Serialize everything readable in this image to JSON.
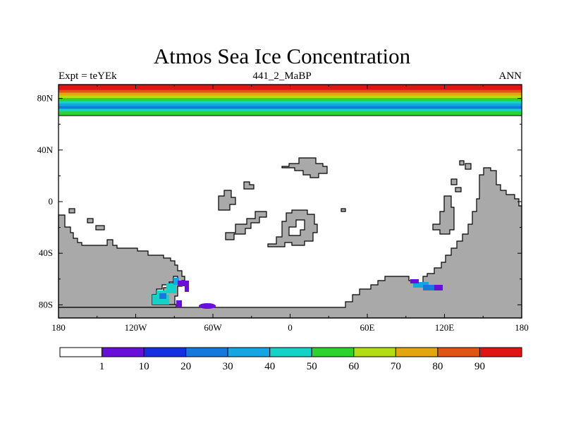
{
  "title": "Atmos Sea Ice Concentration",
  "subtitle_left": "Expt = teYEk",
  "subtitle_center": "441_2_MaBP",
  "subtitle_right": "ANN",
  "lat_ticks": [
    {
      "value": 80,
      "label": "80N"
    },
    {
      "value": 40,
      "label": "40N"
    },
    {
      "value": 0,
      "label": "0"
    },
    {
      "value": -40,
      "label": "40S"
    },
    {
      "value": -80,
      "label": "80S"
    }
  ],
  "lon_ticks": [
    {
      "value": -180,
      "label": "180"
    },
    {
      "value": -120,
      "label": "120W"
    },
    {
      "value": -60,
      "label": "60W"
    },
    {
      "value": 0,
      "label": "0"
    },
    {
      "value": 60,
      "label": "60E"
    },
    {
      "value": 120,
      "label": "120E"
    },
    {
      "value": 180,
      "label": "180"
    }
  ],
  "legend": {
    "colors": [
      "#ffffff",
      "#6a0fd8",
      "#1530e0",
      "#1478dc",
      "#14a6e0",
      "#14d2c8",
      "#2ed22e",
      "#b4dc14",
      "#e2a610",
      "#e05414",
      "#e01414"
    ],
    "labels": [
      "1",
      "10",
      "20",
      "30",
      "40",
      "50",
      "60",
      "70",
      "80",
      "90"
    ]
  },
  "colors": {
    "land": "#a9a9a9",
    "ocean": "#ffffff",
    "arctic_band": [
      "#e01414",
      "#e01414",
      "#e05414",
      "#e2a610",
      "#b4dc14",
      "#2ed22e",
      "#14d2c8",
      "#14a6e0",
      "#1478dc",
      "#14d2c8",
      "#2ed22e"
    ]
  }
}
